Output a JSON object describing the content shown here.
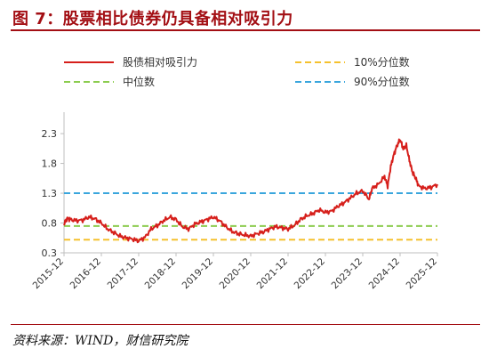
{
  "figure": {
    "title": "图 7：股票相比债券仍具备相对吸引力",
    "source": "资料来源：WIND，财信研究院"
  },
  "colors": {
    "title": "#a30f14",
    "main_series": "#d61f1b",
    "p10": "#f5c12e",
    "median": "#8ccc4f",
    "p90": "#3aa6dd",
    "axis": "#bfbfbf"
  },
  "chart_data": {
    "type": "line",
    "title": "",
    "xlabel": "",
    "ylabel": "",
    "ylim": [
      0.3,
      2.6
    ],
    "yticks": [
      "2.3",
      "1.8",
      "1.3",
      "0.8",
      "0.3"
    ],
    "xlim": [
      "2015-12",
      "2025-12"
    ],
    "xticks": [
      "2015-12",
      "2016-12",
      "2017-12",
      "2018-12",
      "2019-12",
      "2020-12",
      "2021-12",
      "2022-12",
      "2023-12",
      "2024-12",
      "2025-12"
    ],
    "grid": false,
    "legend_position": "top",
    "series": [
      {
        "name": "股债相对吸引力",
        "kind": "line",
        "points": [
          [
            "2015-12",
            0.78
          ],
          [
            "2016-01",
            0.88
          ],
          [
            "2016-02",
            0.86
          ],
          [
            "2016-04",
            0.84
          ],
          [
            "2016-06",
            0.85
          ],
          [
            "2016-08",
            0.9
          ],
          [
            "2016-10",
            0.87
          ],
          [
            "2016-12",
            0.8
          ],
          [
            "2017-02",
            0.7
          ],
          [
            "2017-04",
            0.64
          ],
          [
            "2017-06",
            0.58
          ],
          [
            "2017-08",
            0.55
          ],
          [
            "2017-10",
            0.53
          ],
          [
            "2017-12",
            0.5
          ],
          [
            "2018-02",
            0.56
          ],
          [
            "2018-04",
            0.7
          ],
          [
            "2018-06",
            0.76
          ],
          [
            "2018-08",
            0.84
          ],
          [
            "2018-10",
            0.9
          ],
          [
            "2018-12",
            0.86
          ],
          [
            "2019-02",
            0.74
          ],
          [
            "2019-04",
            0.7
          ],
          [
            "2019-06",
            0.78
          ],
          [
            "2019-08",
            0.82
          ],
          [
            "2019-10",
            0.86
          ],
          [
            "2019-12",
            0.9
          ],
          [
            "2020-02",
            0.84
          ],
          [
            "2020-04",
            0.74
          ],
          [
            "2020-06",
            0.66
          ],
          [
            "2020-08",
            0.62
          ],
          [
            "2020-10",
            0.6
          ],
          [
            "2020-12",
            0.58
          ],
          [
            "2021-02",
            0.62
          ],
          [
            "2021-04",
            0.65
          ],
          [
            "2021-06",
            0.7
          ],
          [
            "2021-08",
            0.74
          ],
          [
            "2021-10",
            0.72
          ],
          [
            "2021-12",
            0.7
          ],
          [
            "2022-02",
            0.76
          ],
          [
            "2022-04",
            0.86
          ],
          [
            "2022-06",
            0.92
          ],
          [
            "2022-08",
            0.96
          ],
          [
            "2022-10",
            1.02
          ],
          [
            "2022-12",
            0.98
          ],
          [
            "2023-02",
            1.0
          ],
          [
            "2023-04",
            1.08
          ],
          [
            "2023-06",
            1.14
          ],
          [
            "2023-08",
            1.22
          ],
          [
            "2023-10",
            1.3
          ],
          [
            "2023-12",
            1.34
          ],
          [
            "2024-02",
            1.2
          ],
          [
            "2024-03",
            1.38
          ],
          [
            "2024-05",
            1.45
          ],
          [
            "2024-07",
            1.58
          ],
          [
            "2024-08",
            1.42
          ],
          [
            "2024-09",
            1.75
          ],
          [
            "2024-10",
            1.95
          ],
          [
            "2024-11",
            2.1
          ],
          [
            "2024-12",
            2.2
          ],
          [
            "2025-01",
            2.05
          ],
          [
            "2025-02",
            2.1
          ],
          [
            "2025-03",
            1.85
          ],
          [
            "2025-04",
            1.65
          ],
          [
            "2025-05",
            1.55
          ],
          [
            "2025-06",
            1.42
          ],
          [
            "2025-08",
            1.38
          ],
          [
            "2025-10",
            1.4
          ],
          [
            "2025-12",
            1.45
          ]
        ]
      },
      {
        "name": "10%分位数",
        "kind": "hline",
        "value": 0.52,
        "dash": true
      },
      {
        "name": "中位数",
        "kind": "hline",
        "value": 0.75,
        "dash": true
      },
      {
        "name": "90%分位数",
        "kind": "hline",
        "value": 1.3,
        "dash": true
      }
    ]
  }
}
